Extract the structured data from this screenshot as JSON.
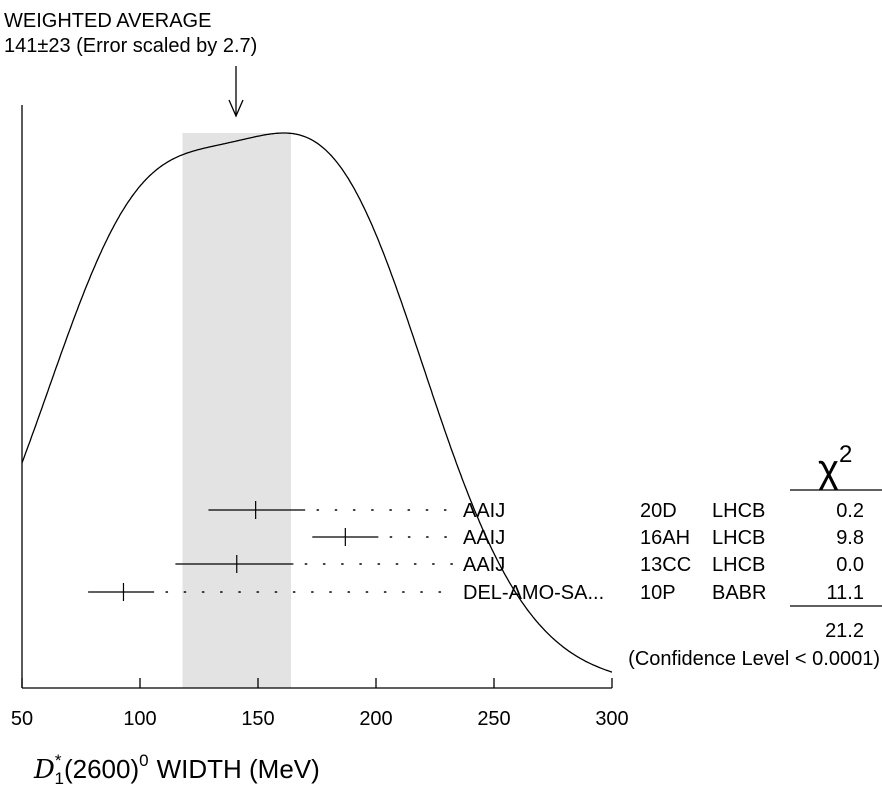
{
  "chart_data": {
    "type": "ideogram",
    "title": "WEIGHTED AVERAGE",
    "subtitle": "141±23 (Error scaled by 2.7)",
    "weighted_average": {
      "value": 141,
      "error": 23,
      "scale_factor": 2.7
    },
    "xlabel": {
      "base": "D",
      "sup": "*",
      "sub": "1",
      "rest": "(2600)",
      "rest_sup": "0",
      "tail": "WIDTH (MeV)"
    },
    "xlim": [
      50,
      300
    ],
    "xticks": [
      50,
      100,
      150,
      200,
      250,
      300
    ],
    "chi2_header": "χ",
    "chi2_header_sup": "2",
    "measurements": [
      {
        "value": 149,
        "low": 129,
        "high": 170,
        "author": "AAIJ",
        "ref": "20D",
        "experiment": "LHCB",
        "chi2": "0.2"
      },
      {
        "value": 187,
        "low": 173,
        "high": 201,
        "author": "AAIJ",
        "ref": "16AH",
        "experiment": "LHCB",
        "chi2": "9.8"
      },
      {
        "value": 141,
        "low": 115,
        "high": 165,
        "author": "AAIJ",
        "ref": "13CC",
        "experiment": "LHCB",
        "chi2": "0.0"
      },
      {
        "value": 93,
        "low": 78,
        "high": 106,
        "author": "DEL-AMO-SA...",
        "ref": "10P",
        "experiment": "BABR",
        "chi2": "11.1"
      }
    ],
    "chi2_total": "21.2",
    "confidence_level": "(Confidence Level < 0.0001)"
  }
}
